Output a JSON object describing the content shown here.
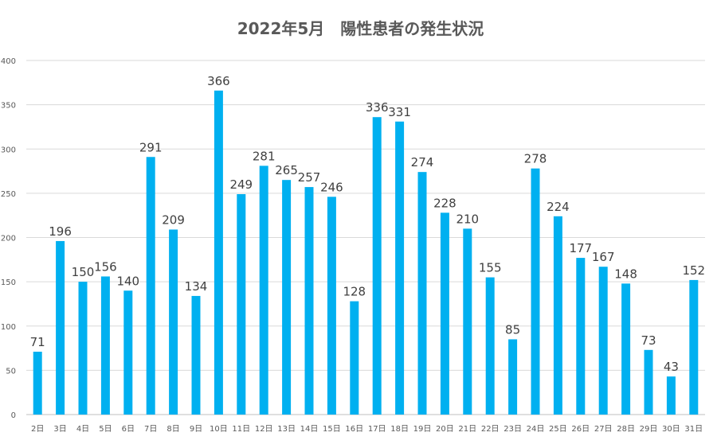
{
  "chart_data": {
    "type": "bar",
    "title": "2022年5月　陽性患者の発生状況",
    "categories": [
      "2日",
      "3日",
      "4日",
      "5日",
      "6日",
      "7日",
      "8日",
      "9日",
      "10日",
      "11日",
      "12日",
      "13日",
      "14日",
      "15日",
      "16日",
      "17日",
      "18日",
      "19日",
      "20日",
      "21日",
      "22日",
      "23日",
      "24日",
      "25日",
      "26日",
      "27日",
      "28日",
      "29日",
      "30日",
      "31日"
    ],
    "values": [
      71,
      196,
      150,
      156,
      140,
      291,
      209,
      134,
      366,
      249,
      281,
      265,
      257,
      246,
      128,
      336,
      331,
      274,
      228,
      210,
      155,
      85,
      278,
      224,
      177,
      167,
      148,
      73,
      43,
      152
    ],
    "yticks": [
      0,
      50,
      100,
      150,
      200,
      250,
      300,
      350,
      400
    ],
    "ylim": [
      0,
      400
    ],
    "grid": true,
    "legend": "none",
    "bar_color": "#00B0F0"
  }
}
